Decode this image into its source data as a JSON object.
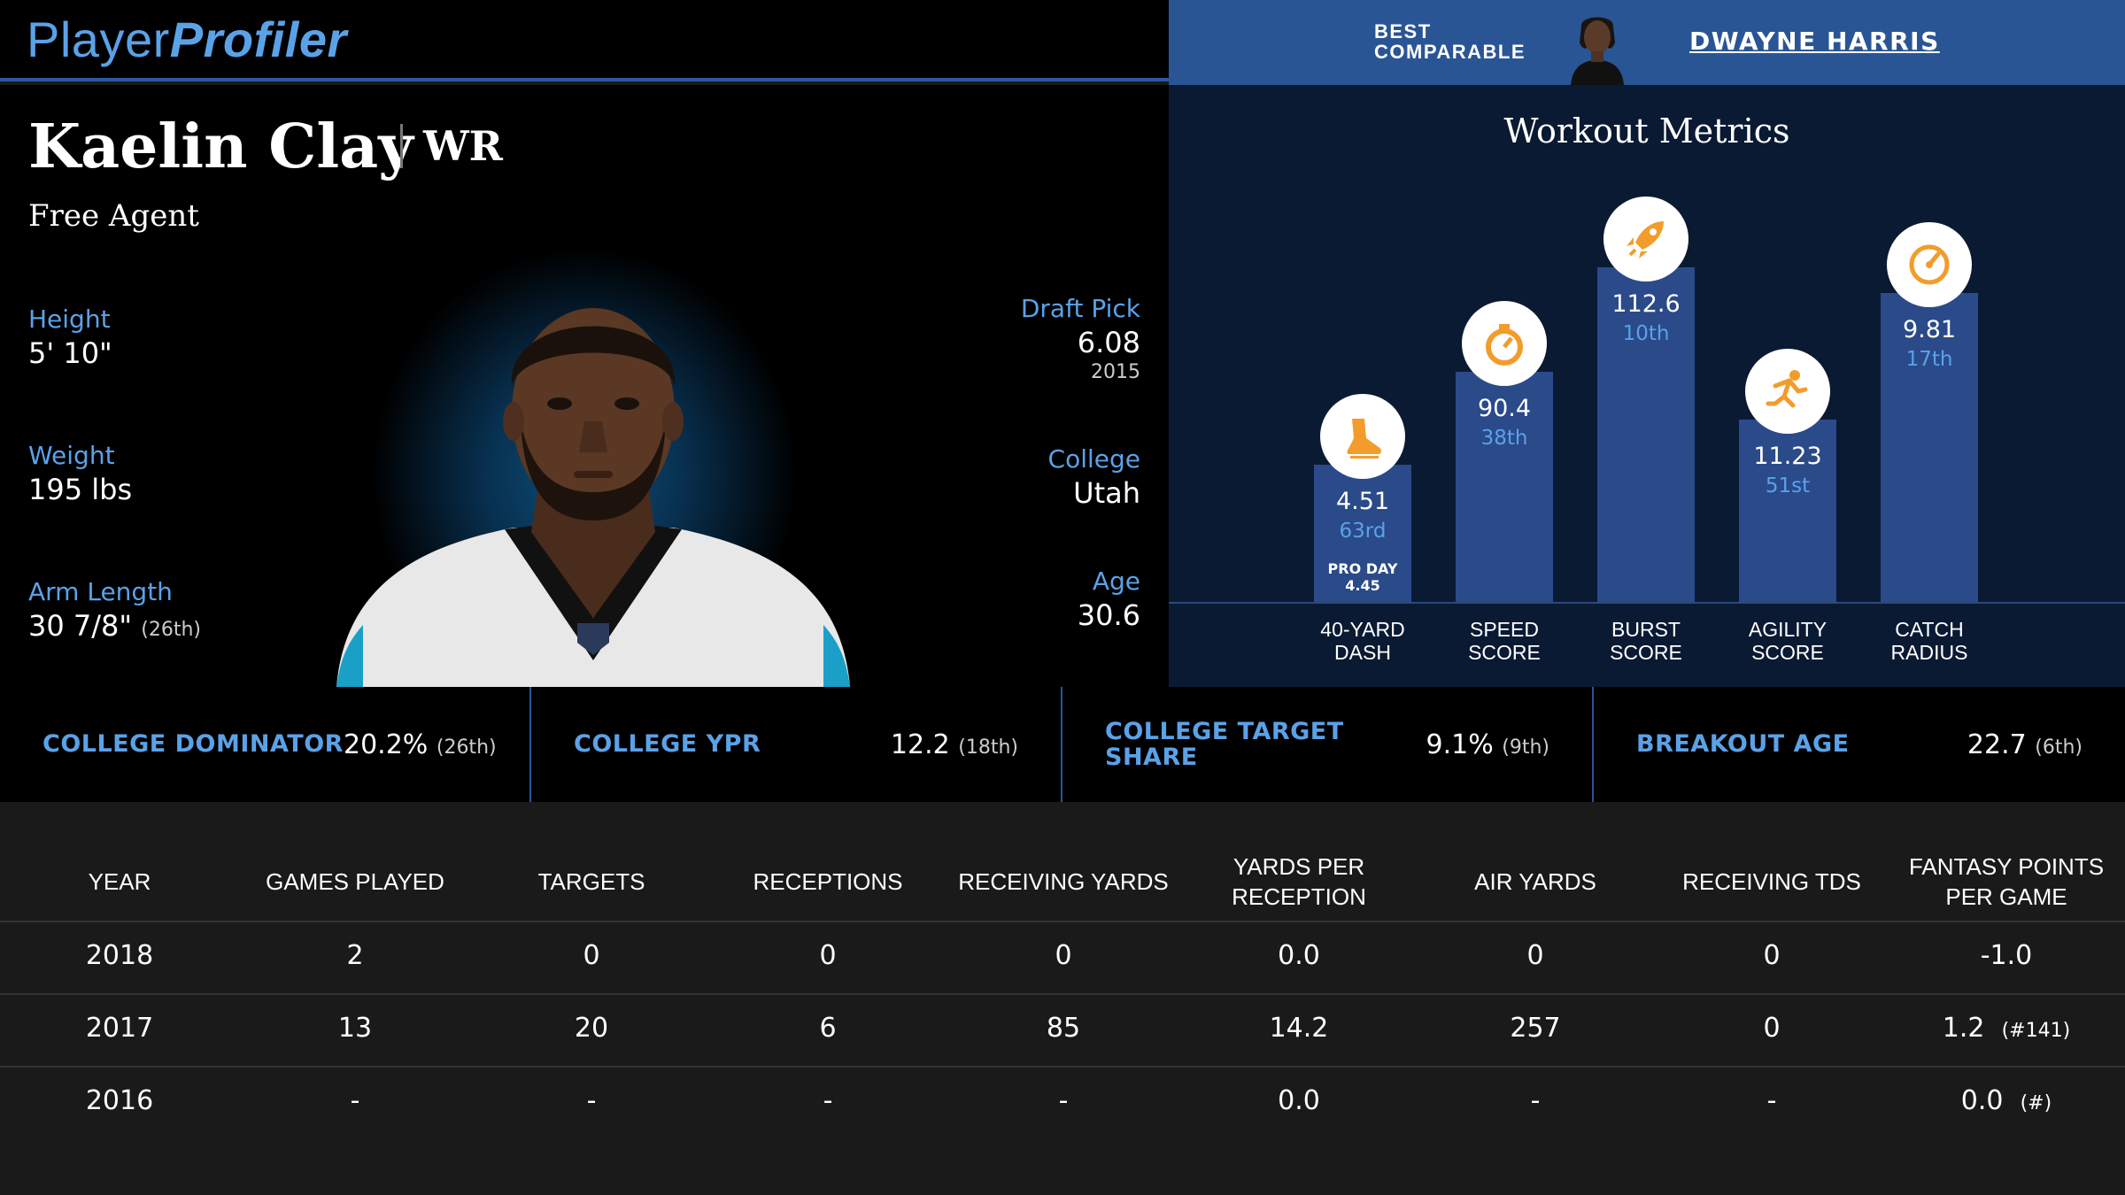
{
  "header": {
    "logo_part1": "Player",
    "logo_part2": "Profiler",
    "comparable_label": "BEST\nCOMPARABLE",
    "comparable_name": "DWAYNE HARRIS"
  },
  "player": {
    "name": "Kaelin Clay",
    "position": "WR",
    "team": "Free Agent",
    "height_label": "Height",
    "height": "5' 10\"",
    "weight_label": "Weight",
    "weight": "195 lbs",
    "arm_label": "Arm Length",
    "arm": "30 7/8\"",
    "arm_rank": "(26th)",
    "draft_label": "Draft Pick",
    "draft": "6.08",
    "draft_year": "2015",
    "college_label": "College",
    "college": "Utah",
    "age_label": "Age",
    "age": "30.6"
  },
  "workout": {
    "title": "Workout Metrics",
    "metrics": [
      {
        "label1": "40-YARD",
        "label2": "DASH",
        "value": "4.51",
        "rank": "63rd",
        "note1": "PRO DAY",
        "note2": "4.45",
        "percentile": 37,
        "icon": "shoe-icon"
      },
      {
        "label1": "SPEED",
        "label2": "SCORE",
        "value": "90.4",
        "rank": "38th",
        "percentile": 62,
        "icon": "stopwatch-icon"
      },
      {
        "label1": "BURST",
        "label2": "SCORE",
        "value": "112.6",
        "rank": "10th",
        "percentile": 90,
        "icon": "rocket-icon"
      },
      {
        "label1": "AGILITY",
        "label2": "SCORE",
        "value": "11.23",
        "rank": "51st",
        "percentile": 49,
        "icon": "runner-icon"
      },
      {
        "label1": "CATCH",
        "label2": "RADIUS",
        "value": "9.81",
        "rank": "17th",
        "percentile": 83,
        "icon": "gauge-icon"
      }
    ]
  },
  "college_metrics": [
    {
      "label": "COLLEGE DOMINATOR",
      "value": "20.2%",
      "rank": "(26th)"
    },
    {
      "label": "COLLEGE YPR",
      "value": "12.2",
      "rank": "(18th)"
    },
    {
      "label": "COLLEGE TARGET SHARE",
      "value": "9.1%",
      "rank": "(9th)"
    },
    {
      "label": "BREAKOUT AGE",
      "value": "22.7",
      "rank": "(6th)"
    }
  ],
  "table": {
    "headers": [
      "YEAR",
      "GAMES PLAYED",
      "TARGETS",
      "RECEPTIONS",
      "RECEIVING YARDS",
      "YARDS PER RECEPTION",
      "AIR YARDS",
      "RECEIVING TDS",
      "FANTASY POINTS PER GAME"
    ],
    "rows": [
      {
        "year": "2018",
        "games": "2",
        "targets": "0",
        "receptions": "0",
        "yards": "0",
        "ypr": "0.0",
        "air": "0",
        "tds": "0",
        "fppg": "-1.0",
        "fppg_rank": ""
      },
      {
        "year": "2017",
        "games": "13",
        "targets": "20",
        "receptions": "6",
        "yards": "85",
        "ypr": "14.2",
        "air": "257",
        "tds": "0",
        "fppg": "1.2",
        "fppg_rank": "(#141)"
      },
      {
        "year": "2016",
        "games": "-",
        "targets": "-",
        "receptions": "-",
        "yards": "-",
        "ypr": "0.0",
        "air": "-",
        "tds": "-",
        "fppg": "0.0",
        "fppg_rank": "(#)"
      }
    ]
  },
  "colors": {
    "accent": "#5aa2e8",
    "bar": "#2a4a8a",
    "icon_orange": "#f39c2b",
    "comparable_bg": "#2a5595"
  }
}
